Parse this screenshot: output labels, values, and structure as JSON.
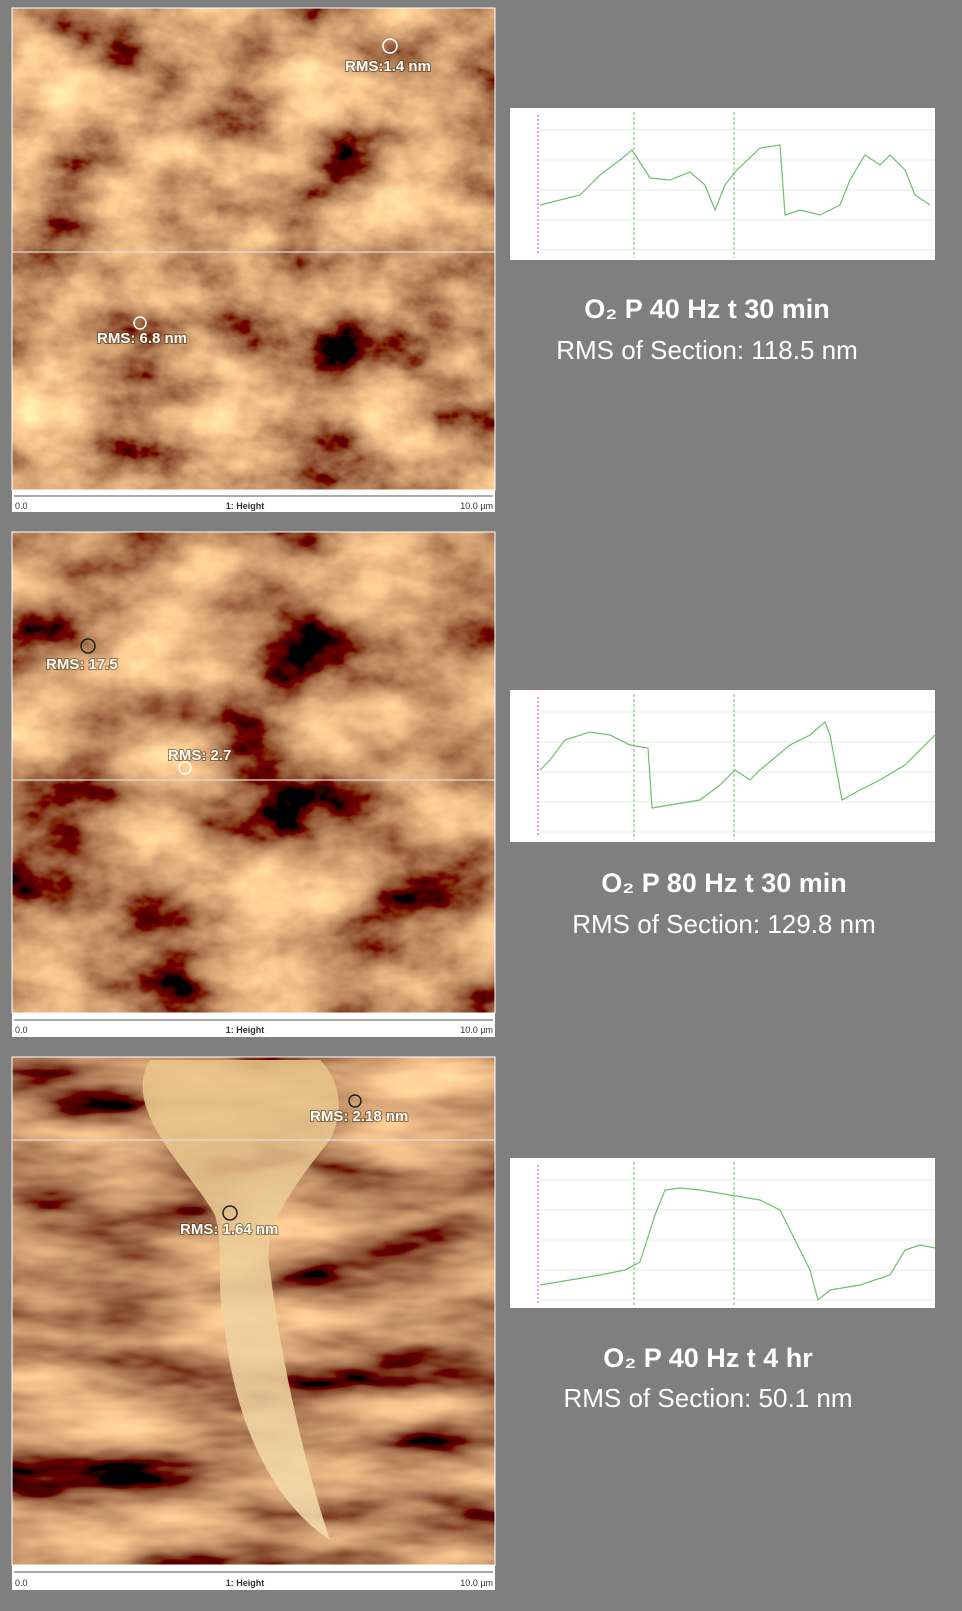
{
  "panels": [
    {
      "annotations": [
        {
          "label": "RMS:1.4 nm"
        },
        {
          "label": "RMS: 6.8 nm"
        }
      ],
      "scale": {
        "start": "0.0",
        "title": "1: Height",
        "end": "10.0 µm"
      },
      "caption": {
        "title": "O₂ P 40 Hz t 30 min",
        "rms": "RMS of Section: 118.5 nm"
      }
    },
    {
      "annotations": [
        {
          "label": "RMS: 17.5"
        },
        {
          "label": "RMS: 2.7"
        }
      ],
      "scale": {
        "start": "0.0",
        "title": "1: Height",
        "end": "10.0 µm"
      },
      "caption": {
        "title": "O₂ P 80 Hz t 30 min",
        "rms": "RMS of Section: 129.8 nm"
      }
    },
    {
      "annotations": [
        {
          "label": "RMS: 2.18 nm"
        },
        {
          "label": "RMS: 1.64 nm"
        }
      ],
      "scale": {
        "start": "0.0",
        "title": "1: Height",
        "end": "10.0 µm"
      },
      "caption": {
        "title": "O₂ P 40 Hz t 4 hr",
        "rms": "RMS of Section: 50.1 nm"
      }
    }
  ]
}
